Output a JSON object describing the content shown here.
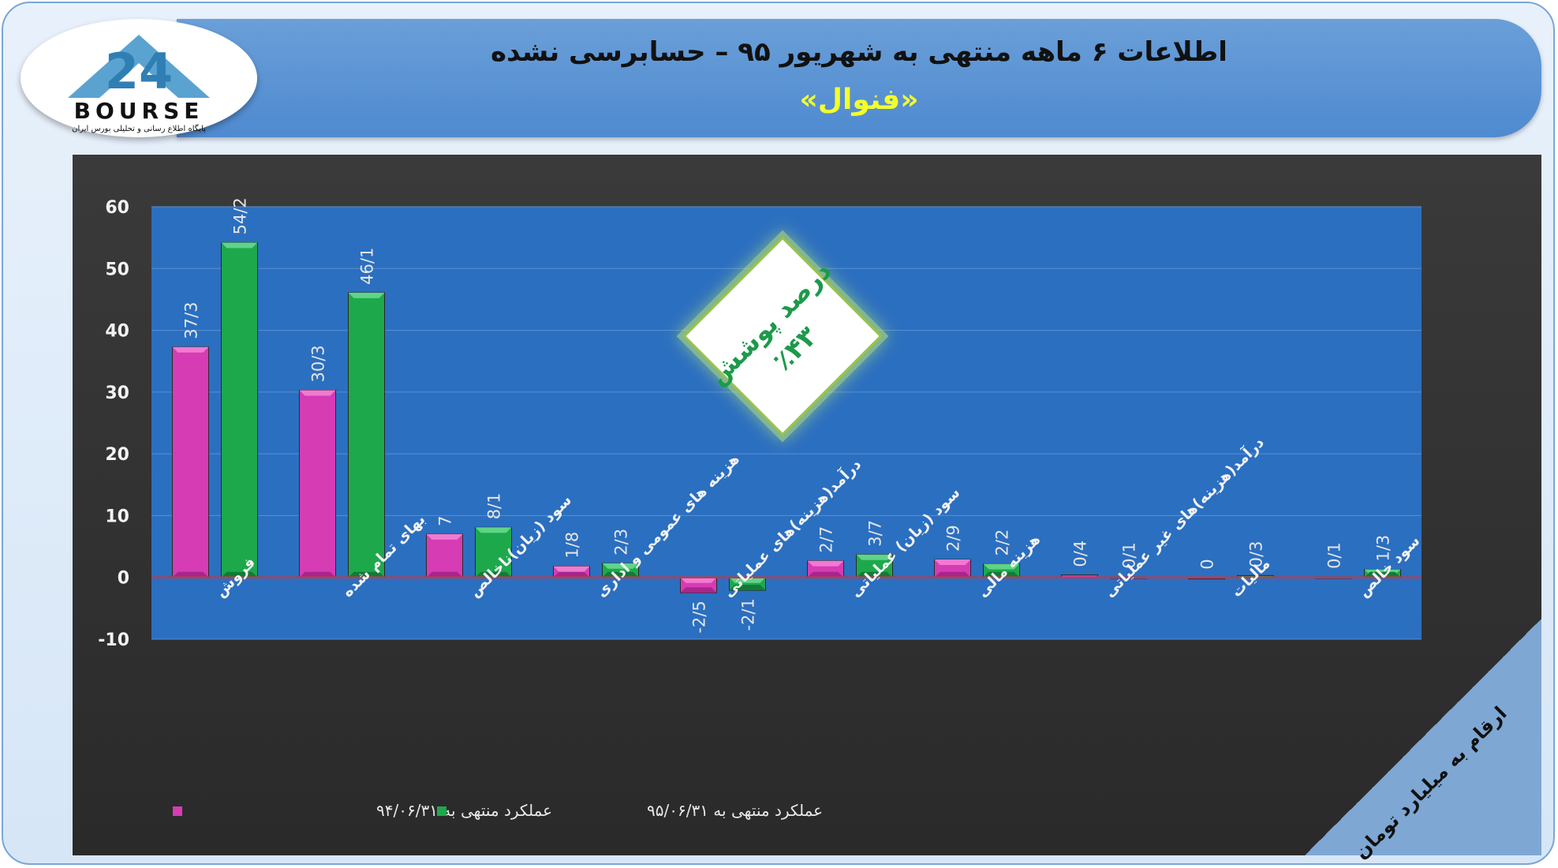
{
  "header": {
    "title": "اطلاعات ۶ ماهه منتهی به شهریور ۹۵ – حسابرسی نشده",
    "company": "«فنوال»"
  },
  "logo": {
    "brand": "BOURSE",
    "number": "24",
    "subtitle": "پایگاه اطلاع رسانی و تحلیلی بورس ایران"
  },
  "badge": {
    "line1": "درصد پوشش",
    "line2": "٪۴۳"
  },
  "units_note": "ارقام به میلیارد تومان",
  "chart_data": {
    "type": "bar",
    "ylim": [
      -10,
      60
    ],
    "yticks": [
      -10,
      0,
      10,
      20,
      30,
      40,
      50,
      60
    ],
    "grid": true,
    "legend_position": "bottom-left",
    "categories": [
      "فروش",
      "بهای تمام شده",
      "سود (زیان)ناخالص",
      "هزینه های عمومی و اداری",
      "درآمد(هزینه)های عملیاتی",
      "سود (زیان) عملیاتی",
      "هزینه مالی",
      "درآمد(هزینه)های غیر عملیاتی",
      "مالیات",
      "سود خالص"
    ],
    "series": [
      {
        "name": "عملکرد منتهی به ۹۴/۰۶/۳۱",
        "color": "#d63cb4",
        "values": [
          37.3,
          30.3,
          7,
          1.8,
          -2.5,
          2.7,
          2.9,
          0.4,
          0,
          0.1
        ],
        "labels": [
          "37/3",
          "30/3",
          "7",
          "1/8",
          "-2/5",
          "2/7",
          "2/9",
          "0/4",
          "0",
          "0/1"
        ]
      },
      {
        "name": "عملکرد منتهی به ۹۵/۰۶/۳۱",
        "color": "#1ea84c",
        "values": [
          54.2,
          46.1,
          8.1,
          2.3,
          -2.1,
          3.7,
          2.2,
          0.1,
          0.3,
          1.3
        ],
        "labels": [
          "54/2",
          "46/1",
          "8/1",
          "2/3",
          "-2/1",
          "3/7",
          "2/2",
          "0/1",
          "0/3",
          "1/3"
        ]
      }
    ]
  }
}
